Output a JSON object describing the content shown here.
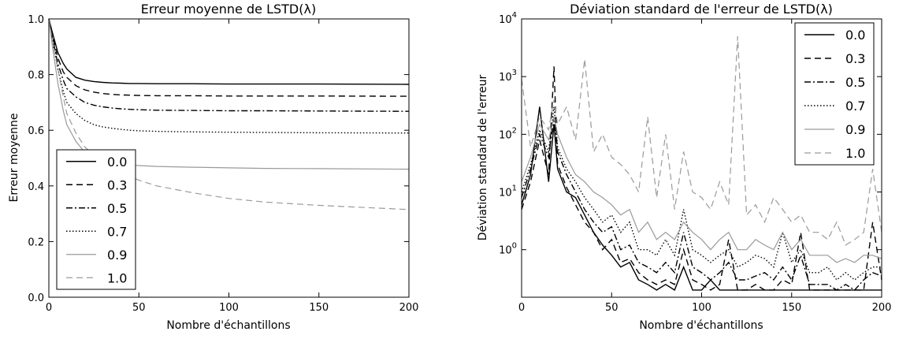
{
  "chart_data": [
    {
      "type": "line",
      "title": "Erreur moyenne de LSTD(λ)",
      "xlabel": "Nombre d'échantillons",
      "ylabel": "Erreur moyenne",
      "xlim": [
        0,
        200
      ],
      "ylim": [
        0.0,
        1.0
      ],
      "xticks": [
        "0",
        "50",
        "100",
        "150",
        "200"
      ],
      "yticks": [
        "0.0",
        "0.2",
        "0.4",
        "0.6",
        "0.8",
        "1.0"
      ],
      "grid": false,
      "legend_position": "lower-left",
      "x": [
        0,
        2,
        5,
        8,
        10,
        15,
        20,
        25,
        30,
        35,
        40,
        45,
        50,
        60,
        80,
        100,
        120,
        150,
        200
      ],
      "series": [
        {
          "name": "0.0",
          "values": [
            1.0,
            0.95,
            0.88,
            0.84,
            0.82,
            0.79,
            0.78,
            0.775,
            0.772,
            0.77,
            0.769,
            0.768,
            0.768,
            0.767,
            0.767,
            0.766,
            0.766,
            0.766,
            0.765
          ]
        },
        {
          "name": "0.3",
          "values": [
            1.0,
            0.94,
            0.86,
            0.81,
            0.79,
            0.76,
            0.745,
            0.737,
            0.732,
            0.729,
            0.727,
            0.726,
            0.725,
            0.724,
            0.724,
            0.723,
            0.723,
            0.723,
            0.722
          ]
        },
        {
          "name": "0.5",
          "values": [
            1.0,
            0.93,
            0.84,
            0.78,
            0.75,
            0.72,
            0.7,
            0.69,
            0.684,
            0.68,
            0.677,
            0.675,
            0.674,
            0.672,
            0.671,
            0.67,
            0.67,
            0.669,
            0.668
          ]
        },
        {
          "name": "0.7",
          "values": [
            1.0,
            0.92,
            0.82,
            0.74,
            0.7,
            0.66,
            0.635,
            0.62,
            0.612,
            0.607,
            0.603,
            0.6,
            0.598,
            0.596,
            0.594,
            0.593,
            0.592,
            0.591,
            0.59
          ]
        },
        {
          "name": "0.9",
          "values": [
            1.0,
            0.9,
            0.77,
            0.67,
            0.62,
            0.56,
            0.52,
            0.5,
            0.49,
            0.482,
            0.478,
            0.475,
            0.473,
            0.47,
            0.467,
            0.465,
            0.463,
            0.462,
            0.46
          ]
        },
        {
          "name": "1.0",
          "values": [
            1.0,
            0.92,
            0.82,
            0.72,
            0.66,
            0.59,
            0.54,
            0.51,
            0.49,
            0.47,
            0.45,
            0.435,
            0.42,
            0.4,
            0.375,
            0.355,
            0.342,
            0.33,
            0.315
          ]
        }
      ]
    },
    {
      "type": "line",
      "title": "Déviation standard de l'erreur de LSTD(λ)",
      "xlabel": "Nombre d'échantillons",
      "ylabel": "Déviation standard de l'erreur",
      "xlim": [
        0,
        200
      ],
      "yscale": "log",
      "ylim": [
        0.15,
        10000
      ],
      "xticks": [
        "0",
        "50",
        "100",
        "150",
        "200"
      ],
      "yticks": [
        "10^0",
        "10^1",
        "10^2",
        "10^3",
        "10^4"
      ],
      "grid": false,
      "legend_position": "upper-right",
      "x": [
        0,
        5,
        10,
        15,
        18,
        20,
        25,
        30,
        35,
        40,
        45,
        50,
        55,
        60,
        65,
        70,
        75,
        80,
        85,
        90,
        95,
        100,
        105,
        110,
        115,
        120,
        125,
        130,
        135,
        140,
        145,
        150,
        155,
        160,
        165,
        170,
        175,
        180,
        185,
        190,
        195,
        200
      ],
      "series": [
        {
          "name": "0.0",
          "values": [
            6,
            20,
            300,
            15,
            150,
            25,
            10,
            8,
            4,
            2,
            1.2,
            0.8,
            0.5,
            0.6,
            0.3,
            0.25,
            0.2,
            0.25,
            0.2,
            0.5,
            0.2,
            0.2,
            0.3,
            0.2,
            0.2,
            0.2,
            0.2,
            0.2,
            0.2,
            0.2,
            0.2,
            0.2,
            0.2,
            0.2,
            0.2,
            0.2,
            0.2,
            0.2,
            0.2,
            0.2,
            0.2,
            0.2
          ]
        },
        {
          "name": "0.3",
          "values": [
            5,
            15,
            80,
            20,
            1500,
            30,
            12,
            6,
            3,
            2,
            1,
            1.5,
            0.6,
            0.7,
            0.4,
            0.3,
            0.25,
            0.3,
            0.25,
            1,
            0.3,
            0.25,
            0.2,
            0.25,
            1.5,
            0.2,
            0.2,
            0.25,
            0.2,
            0.2,
            0.3,
            0.25,
            2,
            0.2,
            0.2,
            0.2,
            0.2,
            0.2,
            0.2,
            0.2,
            3,
            0.3
          ]
        },
        {
          "name": "0.5",
          "values": [
            8,
            25,
            100,
            40,
            200,
            50,
            20,
            10,
            5,
            3,
            2,
            2.5,
            1,
            1.2,
            0.6,
            0.5,
            0.4,
            0.6,
            0.4,
            2,
            0.5,
            0.4,
            0.3,
            0.4,
            0.6,
            0.3,
            0.3,
            0.35,
            0.4,
            0.3,
            0.5,
            0.3,
            0.8,
            0.25,
            0.25,
            0.25,
            0.2,
            0.25,
            0.2,
            0.3,
            0.4,
            0.35
          ]
        },
        {
          "name": "0.7",
          "values": [
            10,
            30,
            120,
            50,
            300,
            60,
            25,
            15,
            8,
            5,
            3,
            4,
            2,
            3,
            1,
            1,
            0.8,
            1.5,
            0.8,
            5,
            1,
            0.8,
            0.6,
            0.8,
            1,
            0.5,
            0.6,
            0.8,
            0.7,
            0.5,
            2,
            0.6,
            1,
            0.4,
            0.4,
            0.5,
            0.3,
            0.4,
            0.3,
            0.4,
            0.5,
            0.5
          ]
        },
        {
          "name": "0.9",
          "values": [
            15,
            40,
            150,
            80,
            200,
            100,
            40,
            20,
            15,
            10,
            8,
            6,
            4,
            5,
            2,
            3,
            1.5,
            2,
            1.5,
            3,
            2,
            1.5,
            1,
            1.5,
            2,
            1,
            1,
            1.5,
            1.2,
            1,
            2,
            1,
            1.5,
            0.8,
            0.8,
            0.8,
            0.6,
            0.7,
            0.6,
            0.8,
            0.8,
            0.7
          ]
        },
        {
          "name": "1.0",
          "values": [
            900,
            60,
            200,
            120,
            400,
            150,
            300,
            80,
            2000,
            50,
            100,
            40,
            30,
            20,
            10,
            200,
            8,
            100,
            5,
            50,
            10,
            8,
            5,
            15,
            6,
            5000,
            4,
            6,
            3,
            8,
            5,
            3,
            4,
            2,
            2,
            1.5,
            3,
            1.2,
            1.5,
            2,
            25,
            2
          ]
        }
      ]
    }
  ]
}
